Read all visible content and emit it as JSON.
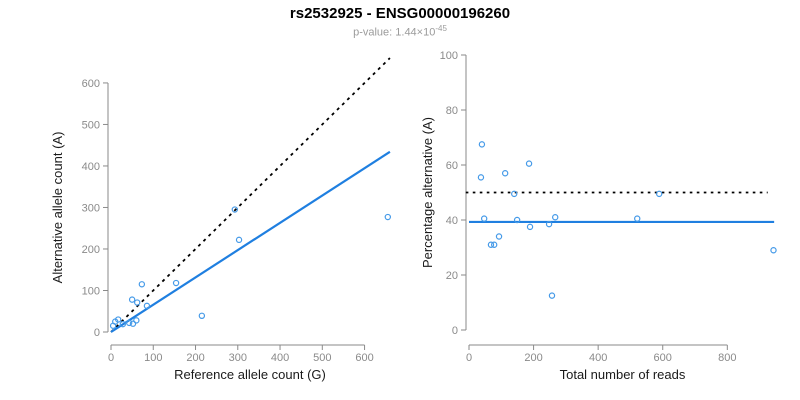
{
  "header": {
    "title": "rs2532925 - ENSG00000196260",
    "subtitle_base": "p-value: 1.44×10",
    "subtitle_exponent": "-45"
  },
  "colors": {
    "line_blue": "#1F7FE0",
    "point_blue": "#459AE8",
    "axis_gray": "#8a8a8a",
    "tick_text_gray": "#8a8a8a",
    "text_dark": "#1a1a1a",
    "dashed_black": "#000000"
  },
  "chart_data": [
    {
      "id": "allele-counts",
      "type": "scatter",
      "xlabel": "Reference allele count (G)",
      "ylabel": "Alternative allele count (A)",
      "xticks": [
        0,
        100,
        200,
        300,
        400,
        500,
        600
      ],
      "yticks": [
        0,
        100,
        200,
        300,
        400,
        500,
        600
      ],
      "xlim": [
        0,
        665
      ],
      "ylim": [
        0,
        660
      ],
      "grid": false,
      "legend": "none",
      "points": [
        [
          5,
          15
        ],
        [
          10,
          25
        ],
        [
          17,
          30
        ],
        [
          28,
          19
        ],
        [
          43,
          22
        ],
        [
          52,
          20
        ],
        [
          60,
          28
        ],
        [
          50,
          78
        ],
        [
          62,
          71
        ],
        [
          85,
          63
        ],
        [
          73,
          115
        ],
        [
          154,
          118
        ],
        [
          215,
          39
        ],
        [
          293,
          295
        ],
        [
          303,
          222
        ],
        [
          655,
          277
        ]
      ],
      "lines": [
        {
          "name": "identity-line",
          "x1": 0,
          "y1": 0,
          "x2": 660,
          "y2": 660,
          "style": "dashed",
          "color": "#000000"
        },
        {
          "name": "regression-line",
          "x1": 0,
          "y1": 0,
          "x2": 660,
          "y2": 434,
          "style": "solid",
          "color": "#1F7FE0"
        }
      ]
    },
    {
      "id": "percentage-vs-reads",
      "type": "scatter",
      "xlabel": "Total number of reads",
      "ylabel": "Percentage alternative (A)",
      "xticks": [
        0,
        200,
        400,
        600,
        800
      ],
      "yticks": [
        0,
        20,
        40,
        60,
        80,
        100
      ],
      "xlim": [
        0,
        960
      ],
      "ylim": [
        0,
        100
      ],
      "grid": false,
      "legend": "none",
      "points": [
        [
          40,
          67.5
        ],
        [
          37,
          55.5
        ],
        [
          112,
          57
        ],
        [
          186,
          60.5
        ],
        [
          140,
          49.5
        ],
        [
          47,
          40.5
        ],
        [
          149,
          40
        ],
        [
          189,
          37.5
        ],
        [
          248,
          38.5
        ],
        [
          267,
          41
        ],
        [
          521,
          40.5
        ],
        [
          93,
          34
        ],
        [
          68,
          31
        ],
        [
          78,
          31
        ],
        [
          257,
          12.5
        ],
        [
          589,
          49.5
        ],
        [
          943,
          29
        ]
      ],
      "lines": [
        {
          "name": "fifty-percent-line",
          "x1": -10,
          "y1": 50,
          "x2": 925,
          "y2": 50,
          "style": "dotted",
          "color": "#000000"
        },
        {
          "name": "mean-percentage-line",
          "x1": 0,
          "y1": 39.3,
          "x2": 945,
          "y2": 39.3,
          "style": "solid",
          "color": "#1F7FE0"
        }
      ]
    }
  ]
}
